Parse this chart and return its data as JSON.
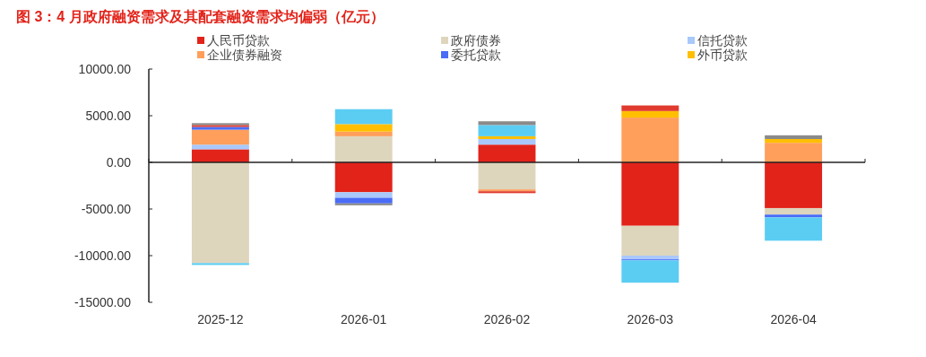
{
  "chart_data": {
    "type": "bar",
    "stacked": true,
    "title": "图 3：4 月政府融资需求及其配套融资需求均偏弱（亿元）",
    "categories": [
      "2025-12",
      "2026-01",
      "2026-02",
      "2026-03",
      "2026-04"
    ],
    "series": [
      {
        "name": "人民币贷款",
        "color": "#e2231a",
        "values": [
          1400,
          -3200,
          1900,
          -6800,
          -4900
        ]
      },
      {
        "name": "政府债券",
        "color": "#ded5bd",
        "values": [
          -10800,
          2800,
          -2900,
          -3200,
          -700
        ]
      },
      {
        "name": "信托贷款",
        "color": "#a9c8fb",
        "values": [
          500,
          -600,
          600,
          -400,
          0
        ]
      },
      {
        "name": "企业债券融资",
        "color": "#ff9f5b",
        "values": [
          1600,
          500,
          -200,
          4800,
          2100
        ]
      },
      {
        "name": "委托贷款",
        "color": "#4a6cf7",
        "values": [
          300,
          -600,
          0,
          -100,
          -300
        ]
      },
      {
        "name": "外币贷款",
        "color": "#ffbf00",
        "values": [
          0,
          800,
          300,
          700,
          400
        ]
      },
      {
        "color": "#5bcdf3",
        "values": [
          -200,
          1600,
          1200,
          -2400,
          -2500
        ]
      },
      {
        "color": "#e03a2f",
        "values": [
          200,
          0,
          -200,
          600,
          0
        ]
      },
      {
        "color": "#8a8a8a",
        "values": [
          200,
          -200,
          400,
          0,
          400
        ]
      }
    ],
    "ylim": [
      -15000,
      10000
    ],
    "yticks": [
      {
        "value": -15000,
        "label": "-15000.00"
      },
      {
        "value": -10000,
        "label": "-10000.00"
      },
      {
        "value": -5000,
        "label": "-5000.00"
      },
      {
        "value": 0,
        "label": "0.00"
      },
      {
        "value": 5000,
        "label": "5000.00"
      },
      {
        "value": 10000,
        "label": "10000.00"
      }
    ],
    "legend": "top"
  }
}
